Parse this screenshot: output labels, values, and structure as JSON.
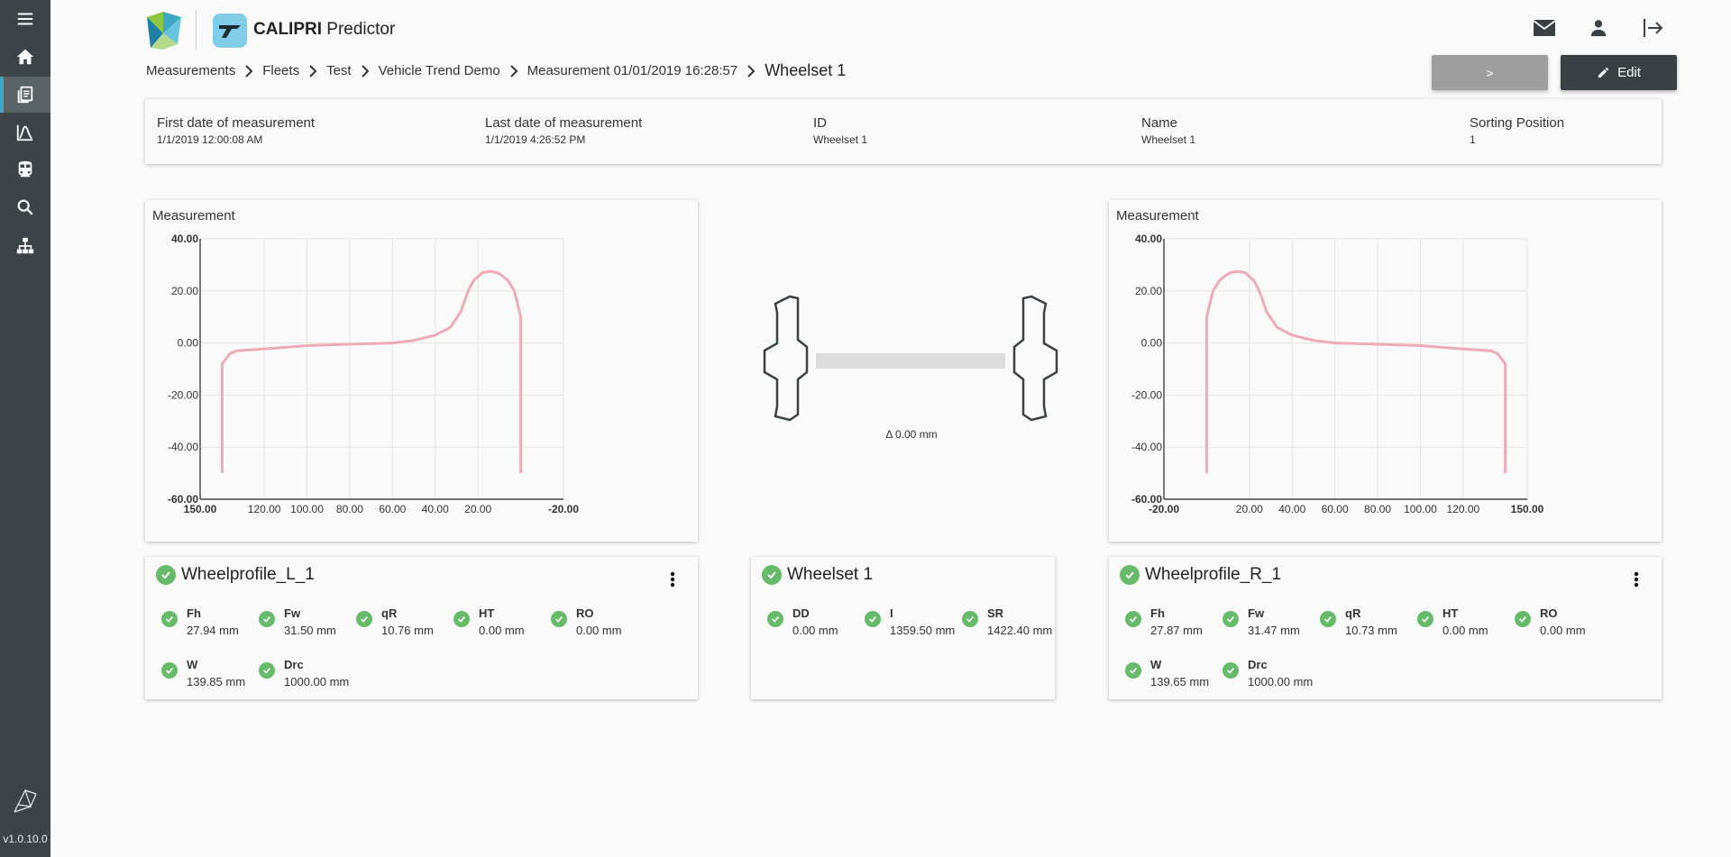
{
  "app": {
    "name_bold": "CALIPRI",
    "name_rest": " Predictor",
    "version": "v1.0.10.0"
  },
  "colors": {
    "sidebar": "#3c4447",
    "accent": "#3ca8c4",
    "profile": "#eeaab7",
    "ok": "#66bb6a",
    "edit_button": "#3a4144",
    "next_button": "#9e9e9e"
  },
  "sidebar": {
    "items": [
      {
        "icon": "menu-icon"
      },
      {
        "icon": "home-icon"
      },
      {
        "icon": "measurements-icon",
        "active": true
      },
      {
        "icon": "trend-chart-icon"
      },
      {
        "icon": "train-icon"
      },
      {
        "icon": "search-icon"
      },
      {
        "icon": "hierarchy-icon"
      }
    ]
  },
  "header": {
    "icons": [
      "mail-icon",
      "user-icon",
      "logout-icon"
    ]
  },
  "breadcrumb": {
    "items": [
      "Measurements",
      "Fleets",
      "Test",
      "Vehicle Trend Demo",
      "Measurement 01/01/2019 16:28:57"
    ],
    "current": "Wheelset 1"
  },
  "buttons": {
    "next": ">",
    "edit": "Edit"
  },
  "info": [
    {
      "label": "First date of measurement",
      "value": "1/1/2019 12:00:08 AM"
    },
    {
      "label": "Last date of measurement",
      "value": "1/1/2019 4:26:52 PM"
    },
    {
      "label": "ID",
      "value": "Wheelset 1"
    },
    {
      "label": "Name",
      "value": "Wheelset 1"
    },
    {
      "label": "Sorting Position",
      "value": "1"
    }
  ],
  "wheelset": {
    "delta": "Δ 0.00 mm"
  },
  "chart_data": [
    {
      "type": "line",
      "title": "Measurement",
      "side": "left",
      "xlim": [
        150,
        -20
      ],
      "ylim": [
        -60,
        40
      ],
      "x_ticks": [
        "150.00",
        "120.00",
        "100.00",
        "80.00",
        "60.00",
        "40.00",
        "20.00",
        "-20.00"
      ],
      "x_tick_values": [
        150,
        120,
        100,
        80,
        60,
        40,
        20,
        -20
      ],
      "y_ticks": [
        "40.00",
        "20.00",
        "0.00",
        "-20.00",
        "-40.00",
        "-60.00"
      ],
      "y_tick_values": [
        40,
        20,
        0,
        -20,
        -40,
        -60
      ],
      "grid": true,
      "series": [
        {
          "x": [
            139.7,
            139.7,
            136,
            133,
            115,
            100,
            80,
            60,
            50,
            40,
            33,
            28,
            26,
            24,
            22,
            18,
            14,
            11,
            9,
            6,
            3,
            0,
            0
          ],
          "y": [
            -50,
            -8,
            -4,
            -3,
            -2,
            -1,
            -0.5,
            0,
            1,
            3,
            6,
            12,
            17,
            21,
            24,
            27,
            27.5,
            27,
            26,
            24,
            20,
            10,
            -50
          ]
        }
      ]
    },
    {
      "type": "line",
      "title": "Measurement",
      "side": "right",
      "xlim": [
        -20,
        150
      ],
      "ylim": [
        -60,
        40
      ],
      "x_ticks": [
        "-20.00",
        "20.00",
        "40.00",
        "60.00",
        "80.00",
        "100.00",
        "120.00",
        "150.00"
      ],
      "x_tick_values": [
        -20,
        20,
        40,
        60,
        80,
        100,
        120,
        150
      ],
      "y_ticks": [
        "40.00",
        "20.00",
        "0.00",
        "-20.00",
        "-40.00",
        "-60.00"
      ],
      "y_tick_values": [
        40,
        20,
        0,
        -20,
        -40,
        -60
      ],
      "grid": true,
      "series": [
        {
          "x": [
            0,
            0,
            3,
            6,
            9,
            11,
            14,
            18,
            22,
            24,
            26,
            28,
            33,
            40,
            50,
            60,
            80,
            100,
            115,
            133,
            136,
            139.7,
            139.7
          ],
          "y": [
            -50,
            10,
            20,
            24,
            26,
            27,
            27.5,
            27,
            24,
            21,
            17,
            12,
            6,
            3,
            1,
            0,
            -0.5,
            -1,
            -2,
            -3,
            -4,
            -8,
            -50
          ]
        }
      ]
    }
  ],
  "cards": {
    "left": {
      "title": "Wheelprofile_L_1",
      "params": [
        {
          "name": "Fh",
          "value": "27.94 mm"
        },
        {
          "name": "Fw",
          "value": "31.50 mm"
        },
        {
          "name": "qR",
          "value": "10.76 mm"
        },
        {
          "name": "HT",
          "value": "0.00 mm"
        },
        {
          "name": "RO",
          "value": "0.00 mm"
        },
        {
          "name": "W",
          "value": "139.85 mm"
        },
        {
          "name": "Drc",
          "value": "1000.00 mm"
        }
      ]
    },
    "center": {
      "title": "Wheelset 1",
      "params": [
        {
          "name": "DD",
          "value": "0.00 mm"
        },
        {
          "name": "I",
          "value": "1359.50 mm"
        },
        {
          "name": "SR",
          "value": "1422.40 mm"
        }
      ]
    },
    "right": {
      "title": "Wheelprofile_R_1",
      "params": [
        {
          "name": "Fh",
          "value": "27.87 mm"
        },
        {
          "name": "Fw",
          "value": "31.47 mm"
        },
        {
          "name": "qR",
          "value": "10.73 mm"
        },
        {
          "name": "HT",
          "value": "0.00 mm"
        },
        {
          "name": "RO",
          "value": "0.00 mm"
        },
        {
          "name": "W",
          "value": "139.65 mm"
        },
        {
          "name": "Drc",
          "value": "1000.00 mm"
        }
      ]
    }
  }
}
